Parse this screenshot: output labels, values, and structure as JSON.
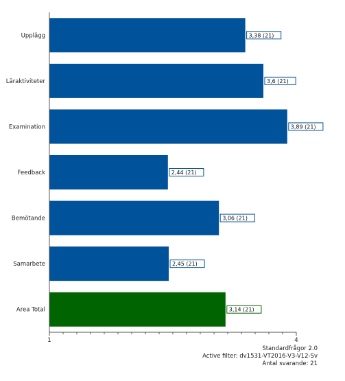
{
  "chart_data": {
    "type": "bar",
    "orientation": "horizontal",
    "categories": [
      "Upplägg",
      "Läraktiviteter",
      "Examination",
      "Feedback",
      "Bemötande",
      "Samarbete",
      "Area Total"
    ],
    "values": [
      3.38,
      3.6,
      3.89,
      2.44,
      3.06,
      2.45,
      3.14
    ],
    "data_labels": [
      "3,38 (21)",
      "3,6 (21)",
      "3,89 (21)",
      "2,44 (21)",
      "3,06 (21)",
      "2,45 (21)",
      "3,14 (21)"
    ],
    "xlim": [
      1,
      4
    ],
    "x_ticks": [
      1,
      4
    ],
    "x_tick_labels": [
      "1",
      "4"
    ],
    "grid": false,
    "title": "",
    "xlabel": "",
    "ylabel": "",
    "colors": {
      "bar": "#00529b",
      "total_bar": "#006400",
      "axis": "#555555",
      "label_border_blue": "#00529b",
      "label_border_green": "#006400"
    }
  },
  "footer": {
    "line1": "Standardfrågor 2.0",
    "line2": "Active filter: dv1531-VT2016-V3-V12-Sv",
    "line3": "Antal svarande: 21"
  }
}
